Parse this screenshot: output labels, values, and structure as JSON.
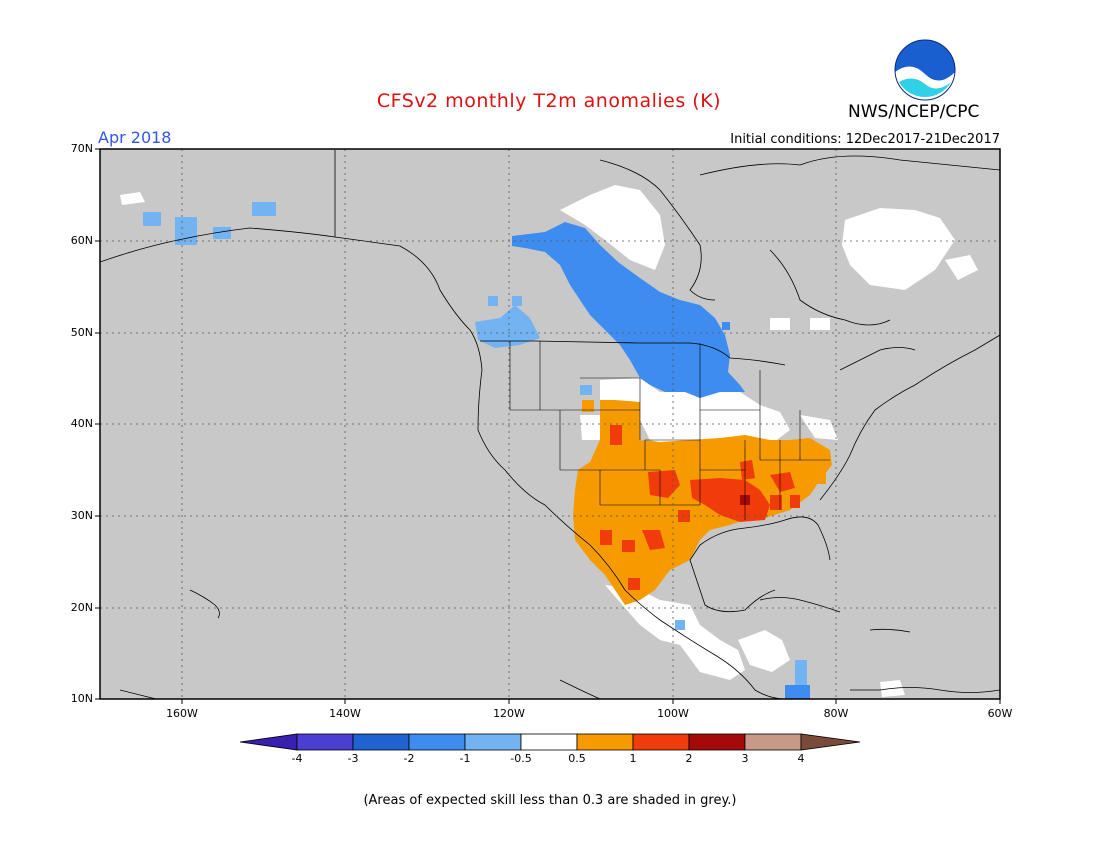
{
  "header": {
    "title": "CFSv2 monthly T2m anomalies (K)",
    "agency": "NWS/NCEP/CPC",
    "logo_text": "NOAA",
    "month": "Apr 2018",
    "initial_conditions": "Initial conditions: 12Dec2017-21Dec2017"
  },
  "map": {
    "lat_labels": [
      "70N",
      "60N",
      "50N",
      "40N",
      "30N",
      "20N",
      "10N"
    ],
    "lon_labels": [
      "160W",
      "140W",
      "120W",
      "100W",
      "80W",
      "60W"
    ],
    "background_color": "#c8c8c8"
  },
  "colorbar": {
    "labels": [
      "-4",
      "-3",
      "-2",
      "-1",
      "-0.5",
      "0.5",
      "1",
      "2",
      "3",
      "4"
    ],
    "colors": [
      "#3a20b0",
      "#4a3fd0",
      "#1f62d0",
      "#3f8cf0",
      "#74b3f2",
      "#ffffff",
      "#f59b00",
      "#f03c0a",
      "#a50a0a",
      "#c79a88",
      "#7a4a3a"
    ]
  },
  "footer": {
    "note": "(Areas of expected skill less than 0.3 are shaded in grey.)"
  }
}
